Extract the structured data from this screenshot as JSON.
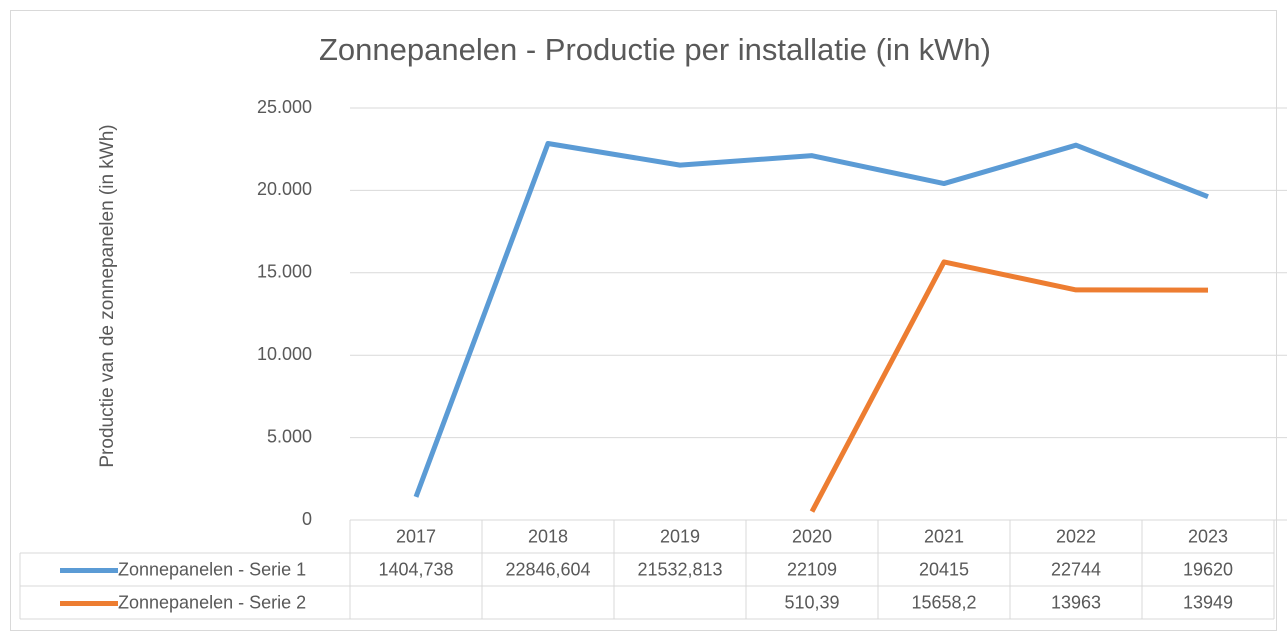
{
  "chart_data": {
    "type": "line",
    "title": "Zonnepanelen - Productie per installatie (in kWh)",
    "y_label": "Productie van de zonnepanelen (in kWh)",
    "categories": [
      "2017",
      "2018",
      "2019",
      "2020",
      "2021",
      "2022",
      "2023"
    ],
    "series": [
      {
        "name": "Zonnepanelen - Serie 1",
        "color": "#5b9bd5",
        "values": [
          1404.738,
          22846.604,
          21532.813,
          22109,
          20415,
          22744,
          19620
        ],
        "value_labels": [
          "1404,738",
          "22846,604",
          "21532,813",
          "22109",
          "20415",
          "22744",
          "19620"
        ]
      },
      {
        "name": "Zonnepanelen - Serie 2",
        "color": "#ed7d31",
        "values": [
          null,
          null,
          null,
          510.39,
          15658.2,
          13963,
          13949
        ],
        "value_labels": [
          null,
          null,
          null,
          "510,39",
          "15658,2",
          "13963",
          "13949"
        ]
      }
    ],
    "ylim": [
      0,
      25000
    ],
    "yticks": [
      0,
      {
        "value": 5000,
        "label": "5.000"
      },
      {
        "value": 10000,
        "label": "10.000"
      },
      {
        "value": 15000,
        "label": "15.000"
      },
      {
        "value": 20000,
        "label": "20.000"
      },
      {
        "value": 25000,
        "label": "25.000"
      }
    ],
    "grid": true,
    "data_table": true
  }
}
